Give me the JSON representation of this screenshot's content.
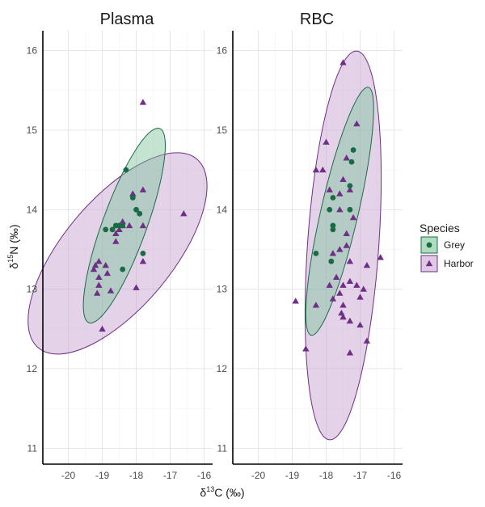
{
  "chart_data": {
    "type": "scatter",
    "facets": [
      "Plasma",
      "RBC"
    ],
    "xlabel": "δ13C (‰)",
    "ylabel": "δ15N (‰)",
    "x_ticks": [
      -20,
      -19,
      -18,
      -17,
      -16
    ],
    "y_ticks": [
      11,
      12,
      13,
      14,
      15,
      16
    ],
    "legend": {
      "title": "Species",
      "entries": [
        {
          "name": "Grey",
          "color": "#1a6b45",
          "fill": "#7cc49a",
          "shape": "circle"
        },
        {
          "name": "Harbor",
          "color": "#6e2f85",
          "fill": "#c9a5d4",
          "shape": "triangle"
        }
      ]
    },
    "panels": [
      {
        "name": "Plasma",
        "xlim": [
          -20.75,
          -15.75
        ],
        "ylim": [
          10.8,
          16.25
        ],
        "series": [
          {
            "name": "Grey",
            "points": [
              [
                -18.3,
                14.5
              ],
              [
                -18.1,
                14.15
              ],
              [
                -18.0,
                14.0
              ],
              [
                -17.9,
                13.95
              ],
              [
                -18.6,
                13.8
              ],
              [
                -18.5,
                13.8
              ],
              [
                -18.4,
                13.8
              ],
              [
                -18.7,
                13.75
              ],
              [
                -18.9,
                13.75
              ],
              [
                -17.8,
                13.45
              ],
              [
                -18.4,
                13.25
              ]
            ],
            "ellipse": {
              "cx": -18.35,
              "cy": 13.8,
              "rx": 0.65,
              "ry": 1.3,
              "rotate": 20
            }
          },
          {
            "name": "Harbor",
            "points": [
              [
                -17.8,
                15.35
              ],
              [
                -18.1,
                14.2
              ],
              [
                -17.8,
                14.25
              ],
              [
                -16.6,
                13.95
              ],
              [
                -18.4,
                13.85
              ],
              [
                -18.4,
                13.8
              ],
              [
                -18.5,
                13.75
              ],
              [
                -18.6,
                13.7
              ],
              [
                -18.2,
                13.8
              ],
              [
                -17.8,
                13.8
              ],
              [
                -17.8,
                13.35
              ],
              [
                -18.6,
                13.6
              ],
              [
                -19.1,
                13.35
              ],
              [
                -19.2,
                13.3
              ],
              [
                -18.9,
                13.3
              ],
              [
                -18.85,
                13.2
              ],
              [
                -19.25,
                13.25
              ],
              [
                -19.1,
                13.15
              ],
              [
                -19.1,
                13.05
              ],
              [
                -19.15,
                12.95
              ],
              [
                -18.75,
                12.98
              ],
              [
                -18.0,
                13.02
              ],
              [
                -19.0,
                12.5
              ]
            ],
            "ellipse": {
              "cx": -18.55,
              "cy": 13.45,
              "rx": 1.6,
              "ry": 1.55,
              "rotate": 40
            }
          }
        ]
      },
      {
        "name": "RBC",
        "xlim": [
          -20.75,
          -15.75
        ],
        "ylim": [
          10.8,
          16.25
        ],
        "series": [
          {
            "name": "Grey",
            "points": [
              [
                -17.2,
                14.75
              ],
              [
                -17.25,
                14.6
              ],
              [
                -17.3,
                14.3
              ],
              [
                -17.8,
                14.15
              ],
              [
                -17.9,
                14.0
              ],
              [
                -17.3,
                14.0
              ],
              [
                -17.8,
                13.8
              ],
              [
                -17.8,
                13.75
              ],
              [
                -18.3,
                13.45
              ],
              [
                -17.85,
                13.35
              ]
            ],
            "ellipse": {
              "cx": -17.6,
              "cy": 13.98,
              "rx": 0.55,
              "ry": 1.6,
              "rotate": 13
            }
          },
          {
            "name": "Harbor",
            "points": [
              [
                -17.5,
                15.85
              ],
              [
                -17.1,
                15.08
              ],
              [
                -18.0,
                14.85
              ],
              [
                -17.4,
                14.65
              ],
              [
                -18.1,
                14.5
              ],
              [
                -18.3,
                14.5
              ],
              [
                -17.5,
                14.38
              ],
              [
                -17.9,
                14.25
              ],
              [
                -17.6,
                14.2
              ],
              [
                -17.3,
                14.25
              ],
              [
                -17.6,
                14.0
              ],
              [
                -17.2,
                13.9
              ],
              [
                -17.4,
                13.7
              ],
              [
                -17.4,
                13.55
              ],
              [
                -17.6,
                13.5
              ],
              [
                -17.8,
                13.45
              ],
              [
                -17.3,
                13.35
              ],
              [
                -16.8,
                13.3
              ],
              [
                -16.4,
                13.4
              ],
              [
                -17.7,
                13.15
              ],
              [
                -17.9,
                13.05
              ],
              [
                -17.5,
                13.05
              ],
              [
                -17.3,
                13.1
              ],
              [
                -17.1,
                13.05
              ],
              [
                -16.9,
                13.0
              ],
              [
                -17.6,
                12.95
              ],
              [
                -17.0,
                12.9
              ],
              [
                -17.8,
                12.88
              ],
              [
                -17.5,
                12.8
              ],
              [
                -18.3,
                12.8
              ],
              [
                -17.55,
                12.7
              ],
              [
                -17.5,
                12.65
              ],
              [
                -18.9,
                12.85
              ],
              [
                -17.3,
                12.6
              ],
              [
                -17.0,
                12.55
              ],
              [
                -16.8,
                12.35
              ],
              [
                -17.3,
                12.2
              ],
              [
                -18.6,
                12.25
              ]
            ],
            "ellipse": {
              "cx": -17.5,
              "cy": 13.55,
              "rx": 1.05,
              "ry": 2.45,
              "rotate": 4
            }
          }
        ]
      }
    ]
  }
}
